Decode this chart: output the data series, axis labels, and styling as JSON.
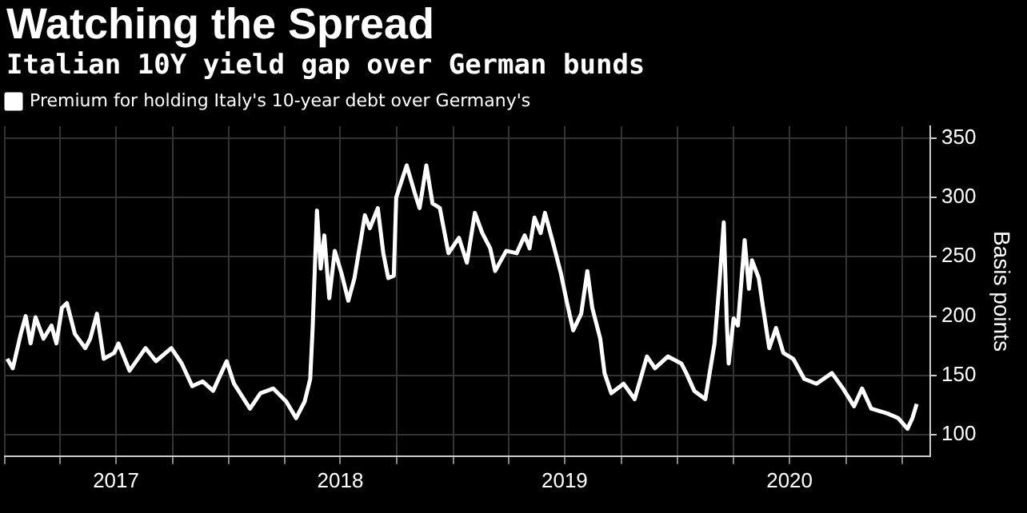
{
  "chart_data": {
    "type": "line",
    "title": "Watching the Spread",
    "subtitle": "Italian 10Y yield gap over German bunds",
    "ylabel": "Basis points",
    "x": [
      "2017-01-05",
      "2017-01-14",
      "2017-01-27",
      "2017-02-04",
      "2017-02-12",
      "2017-02-20",
      "2017-03-05",
      "2017-03-18",
      "2017-03-26",
      "2017-04-04",
      "2017-04-12",
      "2017-04-25",
      "2017-05-12",
      "2017-05-20",
      "2017-05-31",
      "2017-06-11",
      "2017-06-28",
      "2017-07-05",
      "2017-07-23",
      "2017-08-18",
      "2017-09-04",
      "2017-09-29",
      "2017-10-16",
      "2017-11-02",
      "2017-11-19",
      "2017-12-06",
      "2017-12-28",
      "2018-01-09",
      "2018-02-04",
      "2018-02-21",
      "2018-03-14",
      "2018-04-04",
      "2018-04-20",
      "2018-05-04",
      "2018-05-13",
      "2018-05-17",
      "2018-05-24",
      "2018-05-30",
      "2018-06-05",
      "2018-06-13",
      "2018-06-22",
      "2018-07-03",
      "2018-07-14",
      "2018-07-24",
      "2018-08-10",
      "2018-08-18",
      "2018-08-31",
      "2018-09-09",
      "2018-09-17",
      "2018-09-26",
      "2018-09-30",
      "2018-10-17",
      "2018-10-30",
      "2018-11-07",
      "2018-11-18",
      "2018-11-28",
      "2018-12-10",
      "2018-12-24",
      "2019-01-10",
      "2019-01-23",
      "2019-02-05",
      "2019-02-17",
      "2019-03-02",
      "2019-03-10",
      "2019-03-28",
      "2019-04-14",
      "2019-04-27",
      "2019-05-05",
      "2019-05-13",
      "2019-05-23",
      "2019-05-30",
      "2019-06-12",
      "2019-06-25",
      "2019-07-05",
      "2019-07-15",
      "2019-07-28",
      "2019-08-07",
      "2019-08-15",
      "2019-08-28",
      "2019-09-04",
      "2019-09-15",
      "2019-10-05",
      "2019-10-23",
      "2019-11-12",
      "2019-11-25",
      "2019-12-16",
      "2020-01-07",
      "2020-01-15",
      "2020-01-28",
      "2020-02-15",
      "2020-03-01",
      "2020-03-09",
      "2020-03-16",
      "2020-03-21",
      "2020-03-24",
      "2020-04-01",
      "2020-04-08",
      "2020-04-19",
      "2020-04-26",
      "2020-05-01",
      "2020-05-12",
      "2020-05-19",
      "2020-05-29",
      "2020-06-09",
      "2020-06-21",
      "2020-07-07",
      "2020-07-25",
      "2020-08-14",
      "2020-09-08",
      "2020-09-26",
      "2020-10-14",
      "2020-10-27",
      "2020-11-11",
      "2020-12-07",
      "2020-12-25",
      "2021-01-09",
      "2021-01-17",
      "2021-01-24"
    ],
    "series": [
      {
        "name": "Premium for holding Italy's 10-year debt over Germany's",
        "color": "#ffffff",
        "values": [
          164,
          156,
          185,
          200,
          177,
          199,
          181,
          192,
          177,
          207,
          211,
          185,
          173,
          181,
          202,
          164,
          169,
          177,
          154,
          173,
          162,
          173,
          160,
          141,
          145,
          137,
          162,
          143,
          122,
          135,
          139,
          128,
          114,
          128,
          147,
          190,
          289,
          240,
          268,
          215,
          255,
          236,
          213,
          232,
          285,
          274,
          291,
          253,
          232,
          234,
          300,
          327,
          304,
          291,
          327,
          295,
          291,
          253,
          266,
          245,
          287,
          270,
          257,
          238,
          255,
          253,
          268,
          257,
          283,
          270,
          287,
          262,
          236,
          211,
          188,
          202,
          238,
          207,
          181,
          152,
          135,
          143,
          130,
          166,
          156,
          166,
          160,
          152,
          137,
          130,
          177,
          228,
          279,
          194,
          160,
          198,
          192,
          264,
          223,
          247,
          232,
          207,
          173,
          190,
          169,
          164,
          147,
          143,
          152,
          139,
          124,
          139,
          122,
          118,
          114,
          105,
          114,
          126
        ]
      }
    ],
    "xlim": [
      "2017-01-01",
      "2021-02-15"
    ],
    "xticks": [
      {
        "value": "2017-01-01",
        "label": null
      },
      {
        "value": "2017-04-01",
        "label": null
      },
      {
        "value": "2017-07-01",
        "label": "2017"
      },
      {
        "value": "2017-10-01",
        "label": null
      },
      {
        "value": "2018-01-01",
        "label": null
      },
      {
        "value": "2018-04-01",
        "label": null
      },
      {
        "value": "2018-07-01",
        "label": "2018"
      },
      {
        "value": "2018-10-01",
        "label": null
      },
      {
        "value": "2019-01-01",
        "label": null
      },
      {
        "value": "2019-04-01",
        "label": null
      },
      {
        "value": "2019-07-01",
        "label": "2019"
      },
      {
        "value": "2019-10-01",
        "label": null
      },
      {
        "value": "2020-01-01",
        "label": null
      },
      {
        "value": "2020-04-01",
        "label": null
      },
      {
        "value": "2020-07-01",
        "label": "2020"
      },
      {
        "value": "2020-10-01",
        "label": null
      },
      {
        "value": "2021-01-01",
        "label": null
      }
    ],
    "ylim": [
      82,
      360
    ],
    "yticks": [
      100,
      150,
      200,
      250,
      300,
      350
    ],
    "grid": true,
    "legend": "top left",
    "marker": "none",
    "line_style": "solid"
  }
}
